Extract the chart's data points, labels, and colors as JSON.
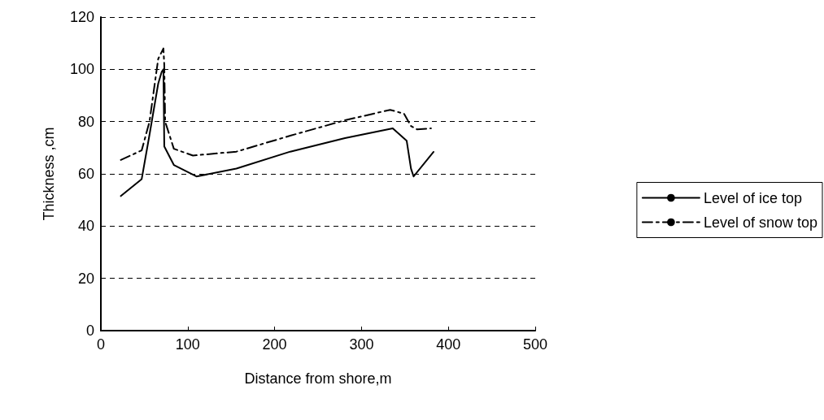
{
  "chart_data": {
    "type": "line",
    "xlabel": "Distance from shore,m",
    "ylabel": "Thickness ,cm",
    "xlim": [
      0,
      500
    ],
    "xticks": [
      0,
      100,
      200,
      300,
      400,
      500
    ],
    "ylim": [
      0,
      120
    ],
    "yticks": [
      0,
      20,
      40,
      60,
      80,
      100,
      120
    ],
    "grid": "y",
    "legend": "right",
    "marker": "none",
    "series": [
      {
        "name": "Level of ice top",
        "color": "#000000",
        "line_style": "solid",
        "x": [
          23,
          47,
          56,
          66,
          70,
          72,
          73,
          84,
          110,
          156,
          218,
          281,
          336,
          352,
          357,
          360,
          383
        ],
        "values": [
          51.5,
          58,
          75,
          94.5,
          99,
          100,
          70.5,
          63.4,
          59,
          62,
          68.5,
          73.7,
          77.4,
          72.7,
          62,
          59,
          68.4
        ]
      },
      {
        "name": "Level of snow top",
        "color": "#000000",
        "line_style": "dashed",
        "x": [
          23,
          47,
          56,
          66,
          72,
          73,
          74,
          84,
          106,
          156,
          218,
          281,
          333,
          349,
          357,
          364,
          380
        ],
        "values": [
          65.3,
          69,
          80,
          104,
          108,
          101.6,
          80,
          69.6,
          67,
          68.5,
          74.6,
          80.5,
          84.5,
          83,
          78.3,
          77,
          77.4
        ]
      }
    ]
  }
}
